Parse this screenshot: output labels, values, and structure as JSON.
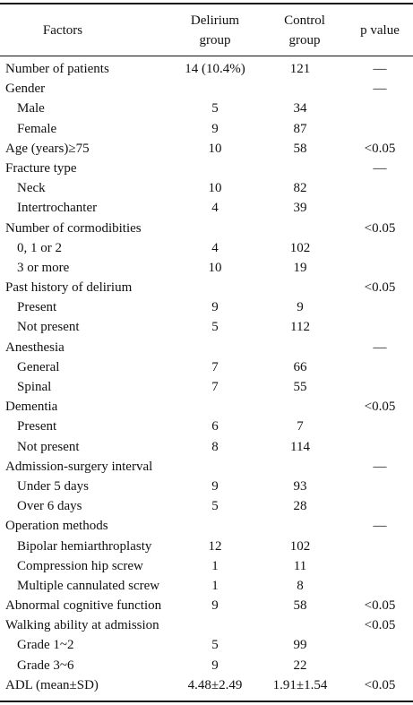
{
  "headers": {
    "factors": "Factors",
    "delirium_line1": "Delirium",
    "delirium_line2": "group",
    "control_line1": "Control",
    "control_line2": "group",
    "pvalue": "p value"
  },
  "rows": [
    {
      "factor": "Number of patients",
      "delirium": "14 (10.4%)",
      "control": "121",
      "p": "—",
      "sub": false
    },
    {
      "factor": "Gender",
      "delirium": "",
      "control": "",
      "p": "—",
      "sub": false
    },
    {
      "factor": "Male",
      "delirium": "5",
      "control": "34",
      "p": "",
      "sub": true
    },
    {
      "factor": "Female",
      "delirium": "9",
      "control": "87",
      "p": "",
      "sub": true
    },
    {
      "factor": "Age (years)≥75",
      "delirium": "10",
      "control": "58",
      "p": "<0.05",
      "sub": false
    },
    {
      "factor": "Fracture type",
      "delirium": "",
      "control": "",
      "p": "—",
      "sub": false
    },
    {
      "factor": "Neck",
      "delirium": "10",
      "control": "82",
      "p": "",
      "sub": true
    },
    {
      "factor": "Intertrochanter",
      "delirium": "4",
      "control": "39",
      "p": "",
      "sub": true
    },
    {
      "factor": "Number of cormodibities",
      "delirium": "",
      "control": "",
      "p": "<0.05",
      "sub": false
    },
    {
      "factor": "0, 1 or 2",
      "delirium": "4",
      "control": "102",
      "p": "",
      "sub": true
    },
    {
      "factor": "3 or more",
      "delirium": "10",
      "control": "19",
      "p": "",
      "sub": true
    },
    {
      "factor": "Past history of delirium",
      "delirium": "",
      "control": "",
      "p": "<0.05",
      "sub": false
    },
    {
      "factor": "Present",
      "delirium": "9",
      "control": "9",
      "p": "",
      "sub": true
    },
    {
      "factor": "Not present",
      "delirium": "5",
      "control": "112",
      "p": "",
      "sub": true
    },
    {
      "factor": "Anesthesia",
      "delirium": "",
      "control": "",
      "p": "—",
      "sub": false
    },
    {
      "factor": "General",
      "delirium": "7",
      "control": "66",
      "p": "",
      "sub": true
    },
    {
      "factor": "Spinal",
      "delirium": "7",
      "control": "55",
      "p": "",
      "sub": true
    },
    {
      "factor": "Dementia",
      "delirium": "",
      "control": "",
      "p": "<0.05",
      "sub": false
    },
    {
      "factor": "Present",
      "delirium": "6",
      "control": "7",
      "p": "",
      "sub": true
    },
    {
      "factor": "Not present",
      "delirium": "8",
      "control": "114",
      "p": "",
      "sub": true
    },
    {
      "factor": "Admission-surgery interval",
      "delirium": "",
      "control": "",
      "p": "—",
      "sub": false
    },
    {
      "factor": "Under 5 days",
      "delirium": "9",
      "control": "93",
      "p": "",
      "sub": true
    },
    {
      "factor": "Over 6 days",
      "delirium": "5",
      "control": "28",
      "p": "",
      "sub": true
    },
    {
      "factor": "Operation methods",
      "delirium": "",
      "control": "",
      "p": "—",
      "sub": false
    },
    {
      "factor": "Bipolar hemiarthroplasty",
      "delirium": "12",
      "control": "102",
      "p": "",
      "sub": true
    },
    {
      "factor": "Compression hip screw",
      "delirium": "1",
      "control": "11",
      "p": "",
      "sub": true
    },
    {
      "factor": "Multiple cannulated screw",
      "delirium": "1",
      "control": "8",
      "p": "",
      "sub": true
    },
    {
      "factor": "Abnormal cognitive function",
      "delirium": "9",
      "control": "58",
      "p": "<0.05",
      "sub": false
    },
    {
      "factor": "Walking ability at admission",
      "delirium": "",
      "control": "",
      "p": "<0.05",
      "sub": false
    },
    {
      "factor": "Grade 1~2",
      "delirium": "5",
      "control": "99",
      "p": "",
      "sub": true
    },
    {
      "factor": "Grade 3~6",
      "delirium": "9",
      "control": "22",
      "p": "",
      "sub": true
    },
    {
      "factor": "ADL (mean±SD)",
      "delirium": "4.48±2.49",
      "control": "1.91±1.54",
      "p": "<0.05",
      "sub": false
    }
  ]
}
